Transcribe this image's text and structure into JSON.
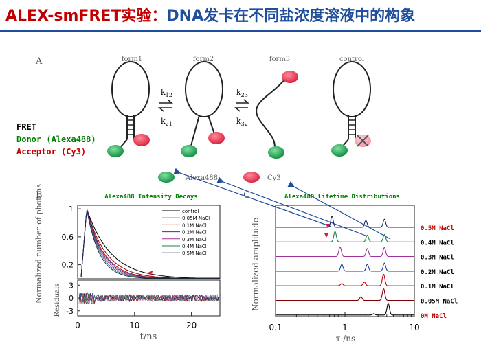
{
  "title": {
    "part1": "ALEX-smFRET实验：",
    "part2": "DNA发卡在不同盐浓度溶液中的构象"
  },
  "panel_labels": {
    "a": "A",
    "b": "B",
    "c": "C"
  },
  "scheme": {
    "forms": [
      "form1",
      "form2",
      "form3",
      "control"
    ],
    "rates": {
      "k12": "k",
      "k12_sub": "12",
      "k21": "k",
      "k21_sub": "21",
      "k23": "k",
      "k23_sub": "23",
      "k32": "k",
      "k32_sub": "32"
    },
    "legend": {
      "fret": "FRET",
      "donor": "Donor (Alexa488)",
      "acceptor": "Acceptor (Cy3)"
    },
    "dye_labels": {
      "alexa": "Alexa488",
      "cy3": "Cy3"
    },
    "colors": {
      "donor": "#1a9e4a",
      "acceptor": "#e0344a"
    }
  },
  "chart_data": [
    {
      "type": "line",
      "title": "Alexa488 Intensity Decays",
      "xlabel": "t/ns",
      "ylabel": "Normalized number of photons",
      "xlim": [
        0,
        25
      ],
      "ylim": [
        0,
        1.05
      ],
      "xticks": [
        0,
        10,
        20
      ],
      "yticks": [
        0.2,
        0.6,
        1
      ],
      "residuals": {
        "ylabel": "Residuals",
        "yticks": [
          3,
          0,
          -3
        ]
      },
      "series": [
        {
          "name": "control",
          "color": "#000000",
          "tau": 4.2
        },
        {
          "name": "0.05M NaCl",
          "color": "#7f0000",
          "tau": 3.4
        },
        {
          "name": "0.1M NaCl",
          "color": "#c00000",
          "tau": 3.0
        },
        {
          "name": "0.2M NaCl",
          "color": "#1f3f9c",
          "tau": 2.8
        },
        {
          "name": "0.3M NaCl",
          "color": "#a0329c",
          "tau": 2.6
        },
        {
          "name": "0.4M NaCl",
          "color": "#1a8040",
          "tau": 2.4
        },
        {
          "name": "0.5M NaCl",
          "color": "#1a2a5a",
          "tau": 2.2
        }
      ]
    },
    {
      "type": "line",
      "title": "Alexa488 Lifetime Distributions",
      "xlabel": "τ /ns",
      "ylabel": "Normalized amplitude",
      "xscale": "log",
      "xlim": [
        0.1,
        10
      ],
      "xticks": [
        0.1,
        1,
        10
      ],
      "series": [
        {
          "name": "0.5M NaCl",
          "color": "#1a2a5a",
          "label_color": "#c00000",
          "peaks": [
            [
              0.65,
              0.9
            ],
            [
              2.0,
              0.55
            ],
            [
              3.7,
              0.65
            ]
          ]
        },
        {
          "name": "0.4M NaCl",
          "color": "#1a8040",
          "label_color": "#000000",
          "peaks": [
            [
              0.72,
              0.85
            ],
            [
              2.1,
              0.55
            ],
            [
              3.7,
              0.6
            ]
          ]
        },
        {
          "name": "0.3M NaCl",
          "color": "#a0329c",
          "label_color": "#000000",
          "peaks": [
            [
              0.85,
              0.8
            ],
            [
              2.1,
              0.65
            ],
            [
              3.7,
              0.75
            ]
          ]
        },
        {
          "name": "0.2M NaCl",
          "color": "#1f3f9c",
          "label_color": "#000000",
          "peaks": [
            [
              0.9,
              0.55
            ],
            [
              2.1,
              0.55
            ],
            [
              3.7,
              0.65
            ]
          ]
        },
        {
          "name": "0.1M NaCl",
          "color": "#c00000",
          "label_color": "#000000",
          "peaks": [
            [
              0.9,
              0.18
            ],
            [
              1.9,
              0.3
            ],
            [
              3.6,
              0.95
            ]
          ]
        },
        {
          "name": "0.05M NaCl",
          "color": "#7f0000",
          "label_color": "#000000",
          "peaks": [
            [
              1.7,
              0.3
            ],
            [
              3.6,
              0.95
            ]
          ]
        },
        {
          "name": "0M NaCl",
          "color": "#000000",
          "label_color": "#c00000",
          "peaks": [
            [
              2.6,
              0.1
            ],
            [
              4.2,
              0.95
            ]
          ]
        }
      ]
    }
  ]
}
